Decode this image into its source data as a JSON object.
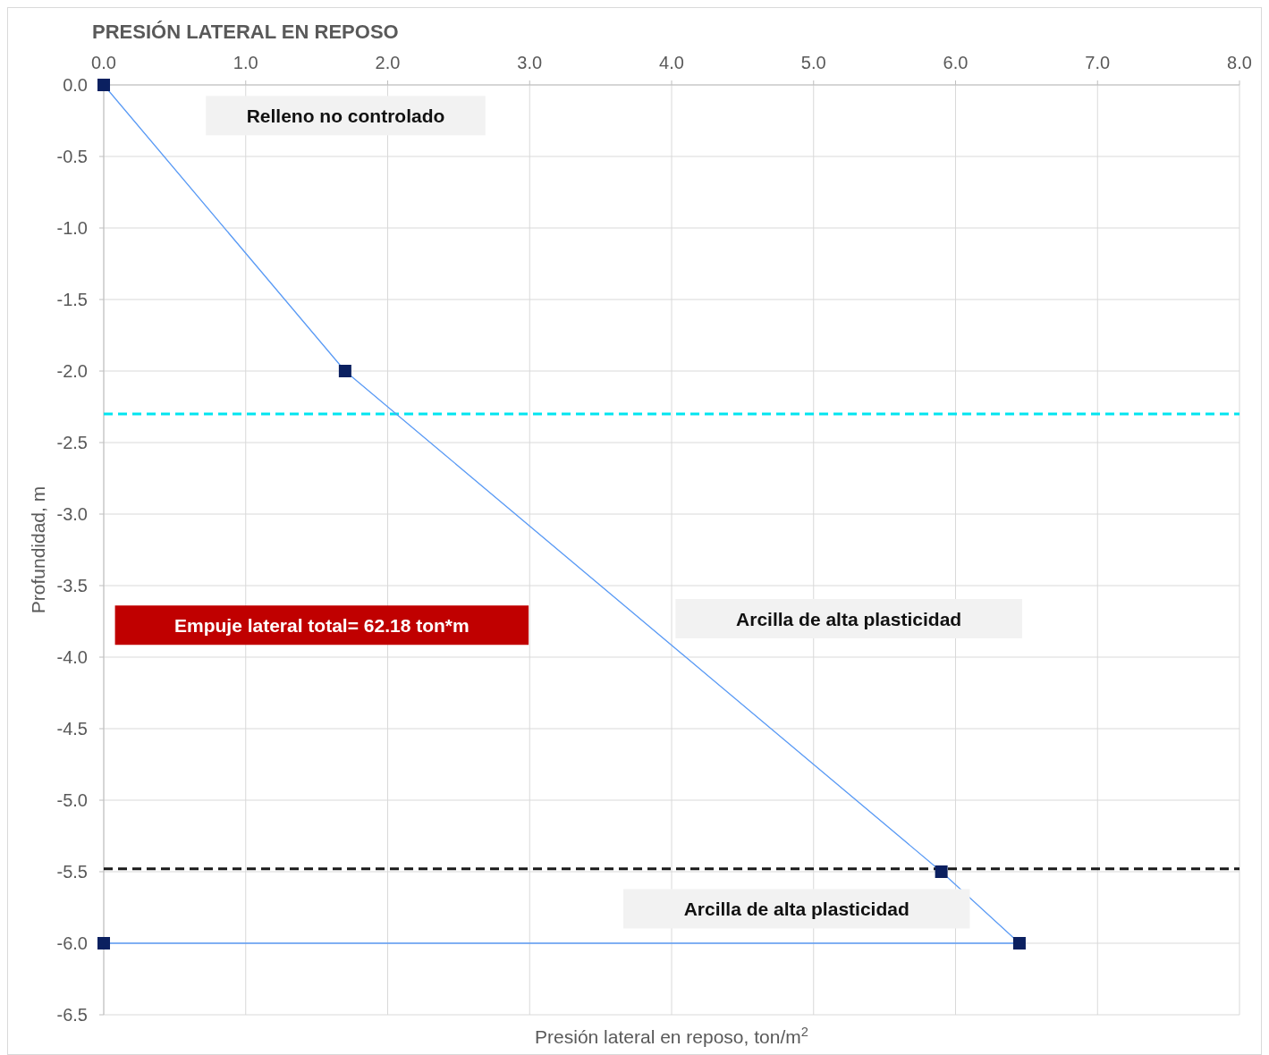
{
  "chart_data": {
    "type": "line",
    "title": "PRESIÓN LATERAL EN REPOSO",
    "xlabel": "Presión lateral en reposo, ton/m$^{2}$",
    "ylabel": "Profundidad, m",
    "x": [
      0,
      1.7,
      5.9,
      6.45,
      0
    ],
    "series": [
      {
        "color": "#5b9bf5",
        "values": [
          0,
          -2,
          -5.5,
          -6,
          -6
        ]
      }
    ],
    "marker": "square",
    "line_style": "solid",
    "grid": true,
    "xlim": [
      0,
      8
    ],
    "xticks": [
      {
        "value": 0,
        "label": "0.0"
      },
      {
        "value": 1,
        "label": "1.0"
      },
      {
        "value": 2,
        "label": "2.0"
      },
      {
        "value": 3,
        "label": "3.0"
      },
      {
        "value": 4,
        "label": "4.0"
      },
      {
        "value": 5,
        "label": "5.0"
      },
      {
        "value": 6,
        "label": "6.0"
      },
      {
        "value": 7,
        "label": "7.0"
      },
      {
        "value": 8,
        "label": "8.0"
      }
    ],
    "ylim": [
      -6.5,
      0
    ],
    "yticks": [
      {
        "value": 0,
        "label": "0.0"
      },
      {
        "value": -0.5,
        "label": "-0.5"
      },
      {
        "value": -1,
        "label": "-1.0"
      },
      {
        "value": -1.5,
        "label": "-1.5"
      },
      {
        "value": -2,
        "label": "-2.0"
      },
      {
        "value": -2.5,
        "label": "-2.5"
      },
      {
        "value": -3,
        "label": "-3.0"
      },
      {
        "value": -3.5,
        "label": "-3.5"
      },
      {
        "value": -4,
        "label": "-4.0"
      },
      {
        "value": -4.5,
        "label": "-4.5"
      },
      {
        "value": -5,
        "label": "-5.0"
      },
      {
        "value": -5.5,
        "label": "-5.5"
      },
      {
        "value": -6,
        "label": "-6.0"
      },
      {
        "value": -6.5,
        "label": "-6.5"
      }
    ],
    "ref_lines": [
      {
        "axis": "y",
        "value": -2.3,
        "color": "#00e5f0",
        "line_style": "dashed"
      },
      {
        "axis": "y",
        "value": -5.48,
        "color": "#1a1a1a",
        "line_style": "dashed"
      }
    ],
    "annotations": [
      "Relleno no controlado",
      "Arcilla de alta plasticidad",
      "Arcilla de alta plasticidad",
      "Empuje lateral total= 62.18 ton*m"
    ]
  }
}
